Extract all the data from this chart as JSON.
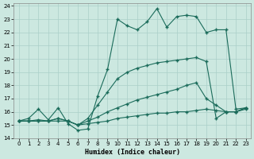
{
  "xlabel": "Humidex (Indice chaleur)",
  "xlim": [
    -0.5,
    23.5
  ],
  "ylim": [
    14,
    24.2
  ],
  "yticks": [
    14,
    15,
    16,
    17,
    18,
    19,
    20,
    21,
    22,
    23,
    24
  ],
  "xticks": [
    0,
    1,
    2,
    3,
    4,
    5,
    6,
    7,
    8,
    9,
    10,
    11,
    12,
    13,
    14,
    15,
    16,
    17,
    18,
    19,
    20,
    21,
    22,
    23
  ],
  "bg_color": "#cce8e0",
  "grid_color": "#aacfc8",
  "line_color": "#1a6b5a",
  "line1_x": [
    0,
    1,
    2,
    3,
    4,
    5,
    6,
    7,
    8,
    9,
    10,
    11,
    12,
    13,
    14,
    15,
    16,
    17,
    18,
    19,
    20,
    21,
    22,
    23
  ],
  "line1_y": [
    15.3,
    15.5,
    16.2,
    15.4,
    16.3,
    15.1,
    14.6,
    14.7,
    17.2,
    19.2,
    23.0,
    22.5,
    22.2,
    22.8,
    23.8,
    22.4,
    23.2,
    23.3,
    23.2,
    22.0,
    22.2,
    22.2,
    16.2,
    16.3
  ],
  "line2_x": [
    0,
    1,
    2,
    3,
    4,
    5,
    6,
    7,
    8,
    9,
    10,
    11,
    12,
    13,
    14,
    15,
    16,
    17,
    18,
    19,
    20,
    21,
    22,
    23
  ],
  "line2_y": [
    15.3,
    15.3,
    15.3,
    15.3,
    15.5,
    15.3,
    15.0,
    15.5,
    16.5,
    17.5,
    18.5,
    19.0,
    19.3,
    19.5,
    19.7,
    19.8,
    19.9,
    20.0,
    20.1,
    19.8,
    15.5,
    16.0,
    16.0,
    16.3
  ],
  "line3_x": [
    0,
    1,
    2,
    3,
    4,
    5,
    6,
    7,
    8,
    9,
    10,
    11,
    12,
    13,
    14,
    15,
    16,
    17,
    18,
    19,
    20,
    21,
    22,
    23
  ],
  "line3_y": [
    15.3,
    15.3,
    15.4,
    15.3,
    15.5,
    15.3,
    15.0,
    15.3,
    15.6,
    16.0,
    16.3,
    16.6,
    16.9,
    17.1,
    17.3,
    17.5,
    17.7,
    18.0,
    18.2,
    17.0,
    16.5,
    16.0,
    16.0,
    16.3
  ],
  "line4_x": [
    0,
    1,
    2,
    3,
    4,
    5,
    6,
    7,
    8,
    9,
    10,
    11,
    12,
    13,
    14,
    15,
    16,
    17,
    18,
    19,
    20,
    21,
    22,
    23
  ],
  "line4_y": [
    15.3,
    15.3,
    15.3,
    15.3,
    15.3,
    15.3,
    15.0,
    15.1,
    15.2,
    15.3,
    15.5,
    15.6,
    15.7,
    15.8,
    15.9,
    15.9,
    16.0,
    16.0,
    16.1,
    16.2,
    16.1,
    16.0,
    16.0,
    16.2
  ]
}
